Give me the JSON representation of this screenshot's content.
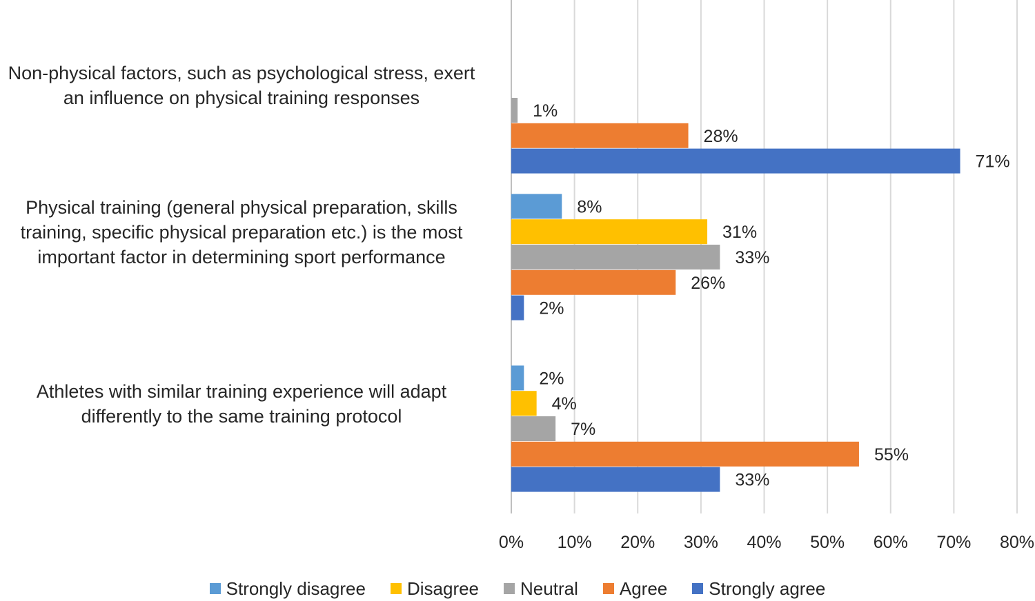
{
  "chart_data": {
    "type": "bar",
    "orientation": "horizontal",
    "categories": [
      [
        "Non-physical factors, such as psychological stress, exert",
        "an influence on physical training responses"
      ],
      [
        "Physical training (general physical preparation, skills",
        "training, specific physical preparation etc.) is the most",
        "important factor in determining sport performance"
      ],
      [
        "Athletes with similar training experience will adapt",
        "differently to the same training protocol"
      ]
    ],
    "series": [
      {
        "name": "Strongly disagree",
        "color": "#5B9BD5",
        "values": [
          null,
          8,
          2
        ],
        "labels": [
          "",
          "8%",
          "2%"
        ]
      },
      {
        "name": "Disagree",
        "color": "#FFC000",
        "values": [
          null,
          31,
          4
        ],
        "labels": [
          "",
          "31%",
          "4%"
        ]
      },
      {
        "name": "Neutral",
        "color": "#A5A5A5",
        "values": [
          1,
          33,
          7
        ],
        "labels": [
          "1%",
          "33%",
          "7%"
        ]
      },
      {
        "name": "Agree",
        "color": "#ED7D31",
        "values": [
          28,
          26,
          55
        ],
        "labels": [
          "28%",
          "26%",
          "55%"
        ]
      },
      {
        "name": "Strongly agree",
        "color": "#4472C4",
        "values": [
          71,
          2,
          33
        ],
        "labels": [
          "71%",
          "2%",
          "33%"
        ]
      }
    ],
    "xlim": [
      0,
      80
    ],
    "xticks": [
      "0%",
      "10%",
      "20%",
      "30%",
      "40%",
      "50%",
      "60%",
      "70%",
      "80%"
    ],
    "grid": true,
    "legend_position": "bottom"
  }
}
